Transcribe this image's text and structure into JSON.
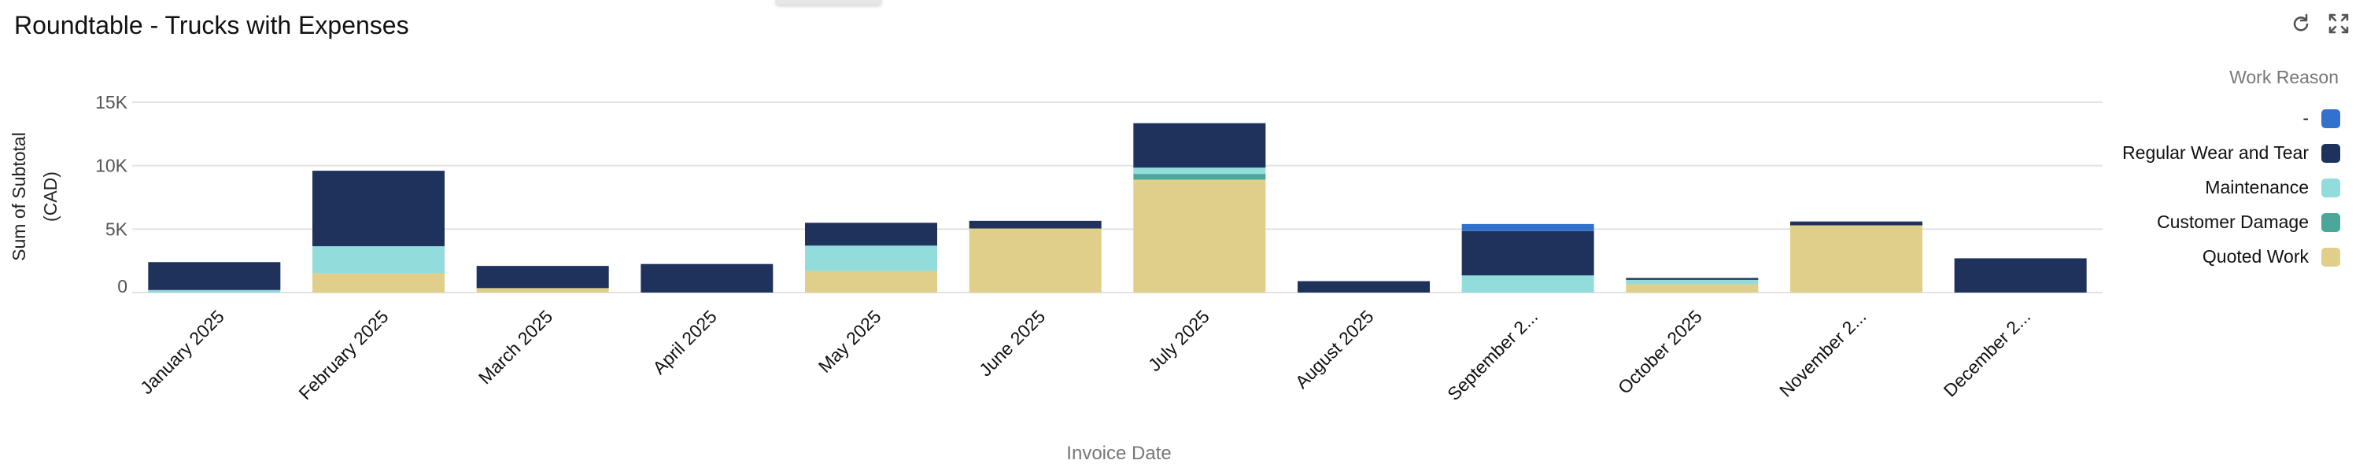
{
  "header": {
    "title": "Roundtable - Trucks with Expenses"
  },
  "toolbar": {
    "refresh_icon": "refresh-icon",
    "expand_icon": "expand-icon"
  },
  "chart_data": {
    "type": "stacked-bar",
    "title": "Roundtable - Trucks with Expenses",
    "xlabel": "Invoice Date",
    "ylabel": "Sum of Subtotal (CAD)",
    "ylim": [
      0,
      15000
    ],
    "y_ticks": [
      "0",
      "5K",
      "10K",
      "15K"
    ],
    "y_tick_values": [
      0,
      5000,
      10000,
      15000
    ],
    "grid": true,
    "legend_title": "Work Reason",
    "legend_position": "right",
    "categories": [
      "January 2025",
      "February 2025",
      "March 2025",
      "April 2025",
      "May 2025",
      "June 2025",
      "July 2025",
      "August 2025",
      "September 2...",
      "October 2025",
      "November 2...",
      "December 2..."
    ],
    "series": [
      {
        "name": "Quoted Work",
        "color": "#e0cf8b",
        "values": [
          0,
          1550,
          350,
          0,
          1700,
          5050,
          8900,
          0,
          0,
          650,
          5300,
          0
        ]
      },
      {
        "name": "Customer Damage",
        "color": "#4aa79a",
        "values": [
          0,
          0,
          0,
          0,
          0,
          0,
          450,
          0,
          0,
          0,
          0,
          0
        ]
      },
      {
        "name": "Maintenance",
        "color": "#92dcdb",
        "values": [
          200,
          2100,
          0,
          0,
          2000,
          0,
          500,
          0,
          1350,
          350,
          0,
          0
        ]
      },
      {
        "name": "Regular Wear and Tear",
        "color": "#1e325c",
        "values": [
          2200,
          5950,
          1750,
          2250,
          1800,
          600,
          3500,
          900,
          3500,
          150,
          300,
          2700
        ]
      },
      {
        "name": "-",
        "color": "#3272cc",
        "values": [
          0,
          0,
          0,
          0,
          0,
          0,
          0,
          0,
          550,
          0,
          0,
          0
        ]
      }
    ],
    "legend_order": [
      "-",
      "Regular Wear and Tear",
      "Maintenance",
      "Customer Damage",
      "Quoted Work"
    ]
  }
}
